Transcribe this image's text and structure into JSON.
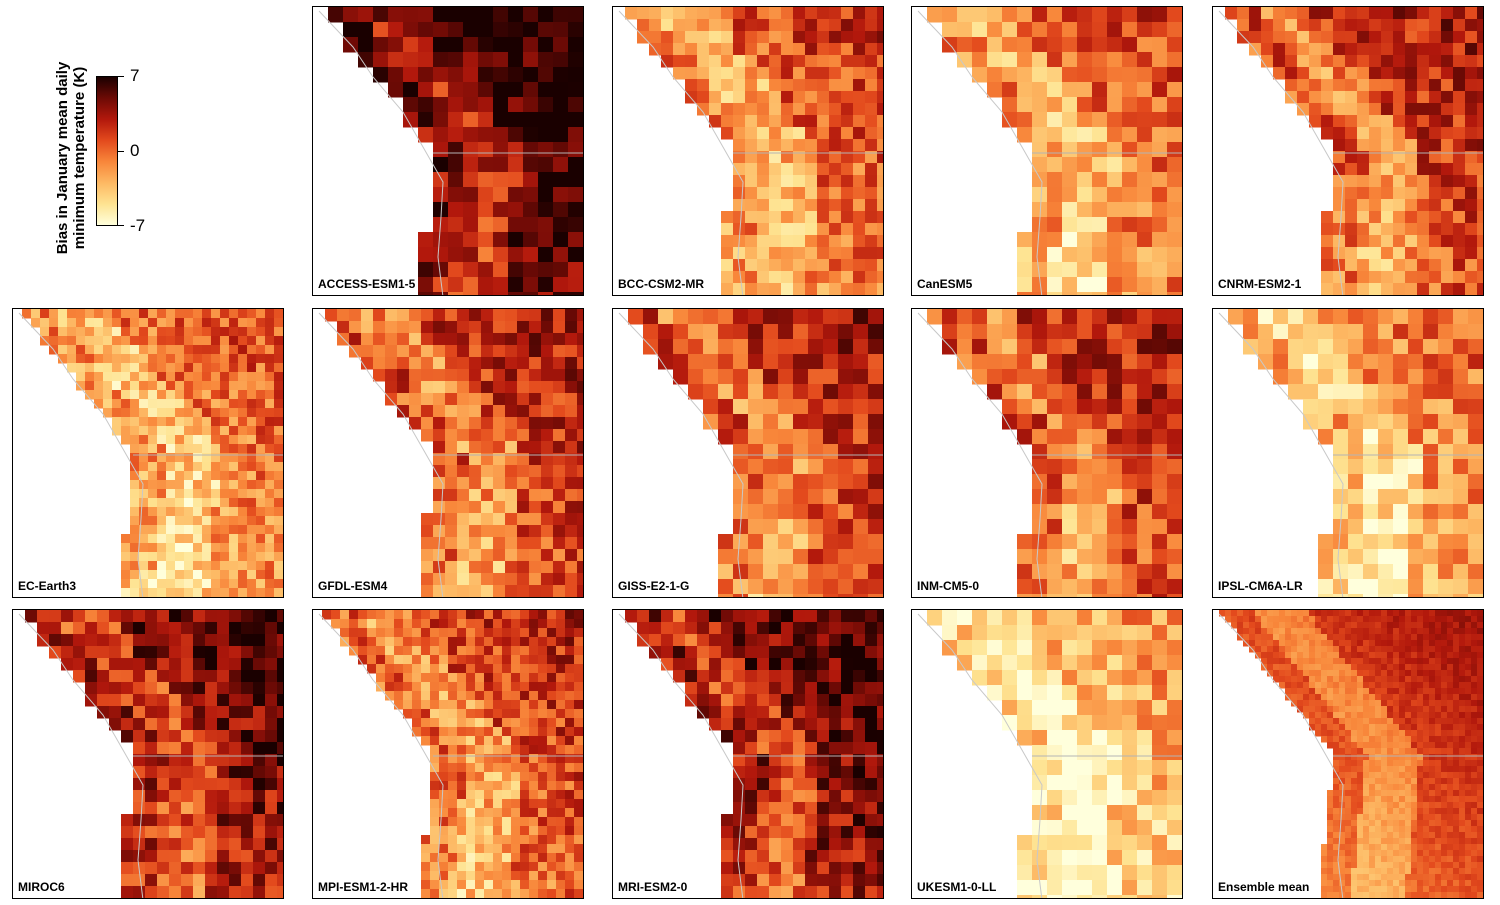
{
  "legend": {
    "title_line1": "Bias in January mean daily",
    "title_line2": "minimum temperature (K)",
    "tick_max": "7",
    "tick_mid": "0",
    "tick_min": "-7",
    "range": [
      -7,
      7
    ],
    "palette": [
      "#ffffdc",
      "#fee391",
      "#fdb863",
      "#f8863a",
      "#e34a1d",
      "#b2180c",
      "#6d0a05",
      "#1a0000"
    ]
  },
  "panels": [
    {
      "label": "ACCESS-ESM1-5",
      "mean_bias_level": 0.85,
      "cell_size": "coarse"
    },
    {
      "label": "BCC-CSM2-MR",
      "mean_bias_level": 0.45,
      "cell_size": "medium"
    },
    {
      "label": "CanESM5",
      "mean_bias_level": 0.42,
      "cell_size": "coarse"
    },
    {
      "label": "CNRM-ESM2-1",
      "mean_bias_level": 0.55,
      "cell_size": "medium"
    },
    {
      "label": "EC-Earth3",
      "mean_bias_level": 0.38,
      "cell_size": "fine"
    },
    {
      "label": "GFDL-ESM4",
      "mean_bias_level": 0.55,
      "cell_size": "medium"
    },
    {
      "label": "GISS-E2-1-G",
      "mean_bias_level": 0.55,
      "cell_size": "coarse"
    },
    {
      "label": "INM-CM5-0",
      "mean_bias_level": 0.55,
      "cell_size": "coarse"
    },
    {
      "label": "IPSL-CM6A-LR",
      "mean_bias_level": 0.32,
      "cell_size": "coarse"
    },
    {
      "label": "MIROC6",
      "mean_bias_level": 0.72,
      "cell_size": "medium"
    },
    {
      "label": "MPI-ESM1-2-HR",
      "mean_bias_level": 0.5,
      "cell_size": "fine"
    },
    {
      "label": "MRI-ESM2-0",
      "mean_bias_level": 0.75,
      "cell_size": "medium"
    },
    {
      "label": "UKESM1-0-LL",
      "mean_bias_level": 0.2,
      "cell_size": "coarse"
    },
    {
      "label": "Ensemble mean",
      "mean_bias_level": 0.55,
      "cell_size": "smooth"
    }
  ]
}
